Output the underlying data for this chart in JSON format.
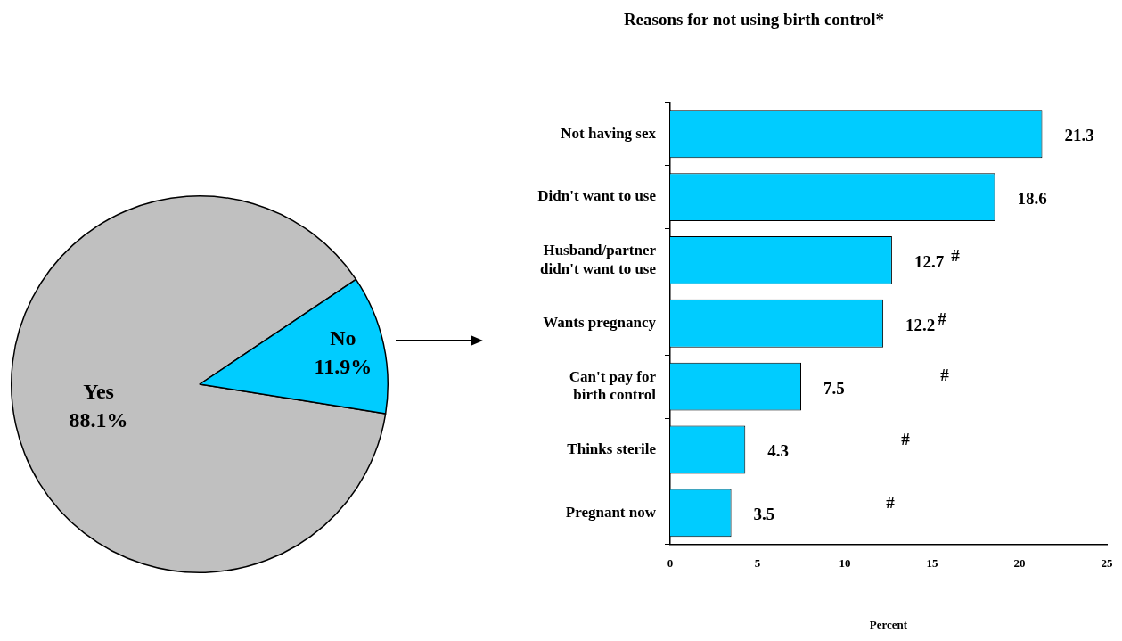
{
  "chart_data": [
    {
      "type": "pie",
      "categories": [
        "Yes",
        "No"
      ],
      "values": [
        88.1,
        11.9
      ],
      "colors": [
        "#c0c0c0",
        "#00ccff"
      ],
      "value_labels": [
        "88.1%",
        "11.9%"
      ]
    },
    {
      "type": "bar",
      "orientation": "horizontal",
      "title": "Reasons for not using birth control*",
      "xlabel": "Percent",
      "categories": [
        "Not having sex",
        "Didn't want to use",
        "Husband/partner didn't want to use",
        "Wants pregnancy",
        "Can't pay for birth control",
        "Thinks sterile",
        "Pregnant now"
      ],
      "values": [
        21.3,
        18.6,
        12.7,
        12.2,
        7.5,
        4.3,
        3.5
      ],
      "color": "#00ccff",
      "xlim": [
        0,
        25
      ],
      "xticks": [
        0,
        5,
        10,
        15,
        20,
        25
      ],
      "data_labels": true,
      "legend": false,
      "annotations": [
        "#",
        "#",
        "#",
        "#",
        "#"
      ]
    }
  ]
}
